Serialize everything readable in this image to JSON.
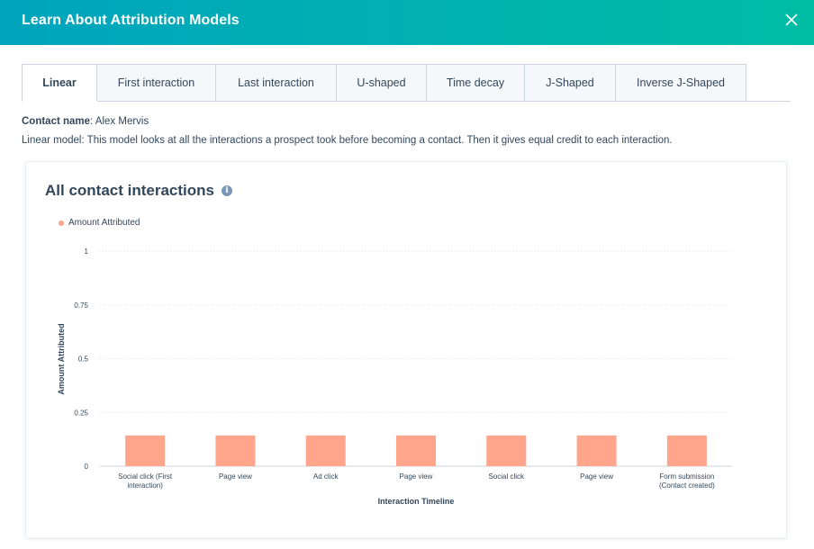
{
  "modal": {
    "title": "Learn About Attribution Models",
    "close_icon": "close-icon"
  },
  "tabs": [
    {
      "label": "Linear",
      "active": true
    },
    {
      "label": "First interaction",
      "active": false
    },
    {
      "label": "Last interaction",
      "active": false
    },
    {
      "label": "U-shaped",
      "active": false
    },
    {
      "label": "Time decay",
      "active": false
    },
    {
      "label": "J-Shaped",
      "active": false
    },
    {
      "label": "Inverse J-Shaped",
      "active": false
    }
  ],
  "contact": {
    "label": "Contact name",
    "name": ": Alex Mervis"
  },
  "model_description": "Linear model: This model looks at all the interactions a prospect took before becoming a contact. Then it gives equal credit to each interaction.",
  "card": {
    "title": "All contact interactions",
    "info_icon": "info-icon"
  },
  "colors": {
    "accent_start": "#00a4bd",
    "accent_end": "#00bda5",
    "bar": "#ffa58c",
    "legend_dot": "#ffa58c",
    "text": "#33475b"
  },
  "chart_data": {
    "type": "bar",
    "title": "",
    "xlabel": "Interaction Timeline",
    "ylabel": "Amount Attributed",
    "ylim": [
      0,
      1
    ],
    "yticks": [
      "0",
      "0.25",
      "0.5",
      "0.75",
      "1"
    ],
    "grid": true,
    "legend_position": "top-left",
    "categories": [
      [
        "Social click (First",
        "interaction)"
      ],
      [
        "Page view"
      ],
      [
        "Ad click"
      ],
      [
        "Page view"
      ],
      [
        "Social click"
      ],
      [
        "Page view"
      ],
      [
        "Form submission",
        "(Contact created)"
      ]
    ],
    "series": [
      {
        "name": "Amount Attributed",
        "values": [
          0.143,
          0.143,
          0.143,
          0.143,
          0.143,
          0.143,
          0.143
        ]
      }
    ]
  }
}
